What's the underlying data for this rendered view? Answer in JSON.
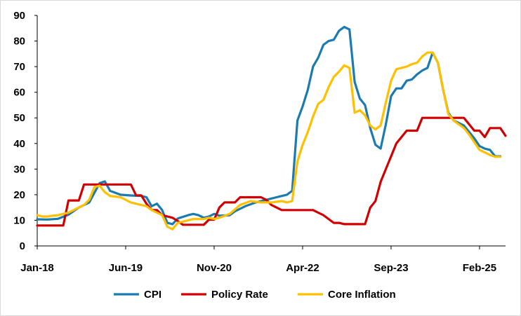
{
  "chart_data": {
    "type": "line",
    "title": "",
    "xlabel": "",
    "ylabel": "",
    "ylim": [
      0,
      90
    ],
    "yticks": [
      0,
      10,
      20,
      30,
      40,
      50,
      60,
      70,
      80,
      90
    ],
    "x_tick_labels": [
      "Jan-18",
      "Jun-19",
      "Nov-20",
      "Apr-22",
      "Sep-23",
      "Feb-25"
    ],
    "x_start": "Jan-18",
    "x_end": "Jun-25",
    "grid": false,
    "legend_position": "bottom",
    "series": [
      {
        "name": "CPI",
        "color": "#1b7bb0",
        "points": [
          [
            "Jan-18",
            10.4
          ],
          [
            "Mar-18",
            10.3
          ],
          [
            "May-18",
            10.6
          ],
          [
            "Jul-18",
            12.2
          ],
          [
            "Sep-18",
            15.0
          ],
          [
            "Nov-18",
            17.0
          ],
          [
            "Jan-19",
            24.5
          ],
          [
            "Feb-19",
            25.2
          ],
          [
            "Mar-19",
            21.5
          ],
          [
            "May-19",
            20.0
          ],
          [
            "Jul-19",
            19.7
          ],
          [
            "Sep-19",
            19.5
          ],
          [
            "Oct-19",
            19.0
          ],
          [
            "Nov-19",
            15.5
          ],
          [
            "Dec-19",
            16.5
          ],
          [
            "Jan-20",
            14.0
          ],
          [
            "Feb-20",
            9.0
          ],
          [
            "Mar-20",
            8.5
          ],
          [
            "Apr-20",
            10.7
          ],
          [
            "Jun-20",
            12.0
          ],
          [
            "Jul-20",
            12.5
          ],
          [
            "Aug-20",
            12.0
          ],
          [
            "Sep-20",
            11.0
          ],
          [
            "Oct-20",
            11.5
          ],
          [
            "Nov-20",
            12.5
          ],
          [
            "Dec-20",
            11.8
          ],
          [
            "Feb-21",
            12.0
          ],
          [
            "Mar-21",
            13.5
          ],
          [
            "May-21",
            15.5
          ],
          [
            "Jul-21",
            17.0
          ],
          [
            "Sep-21",
            18.0
          ],
          [
            "Nov-21",
            19.0
          ],
          [
            "Dec-21",
            19.5
          ],
          [
            "Jan-22",
            20.0
          ],
          [
            "Feb-22",
            21.5
          ],
          [
            "Mar-22",
            49.0
          ],
          [
            "Apr-22",
            54.5
          ],
          [
            "May-22",
            61.0
          ],
          [
            "Jun-22",
            70.0
          ],
          [
            "Jul-22",
            73.5
          ],
          [
            "Aug-22",
            78.5
          ],
          [
            "Sep-22",
            80.0
          ],
          [
            "Oct-22",
            80.5
          ],
          [
            "Nov-22",
            84.0
          ],
          [
            "Dec-22",
            85.5
          ],
          [
            "Jan-23",
            84.5
          ],
          [
            "Feb-23",
            64.0
          ],
          [
            "Mar-23",
            57.5
          ],
          [
            "Apr-23",
            55.0
          ],
          [
            "May-23",
            46.0
          ],
          [
            "Jun-23",
            39.5
          ],
          [
            "Jul-23",
            38.0
          ],
          [
            "Aug-23",
            47.5
          ],
          [
            "Sep-23",
            58.5
          ],
          [
            "Oct-23",
            61.5
          ],
          [
            "Nov-23",
            61.5
          ],
          [
            "Dec-23",
            64.5
          ],
          [
            "Jan-24",
            65.0
          ],
          [
            "Feb-24",
            67.0
          ],
          [
            "Mar-24",
            68.5
          ],
          [
            "Apr-24",
            69.5
          ],
          [
            "May-24",
            75.5
          ],
          [
            "Jun-24",
            71.5
          ],
          [
            "Jul-24",
            61.0
          ],
          [
            "Aug-24",
            52.0
          ],
          [
            "Sep-24",
            49.0
          ],
          [
            "Oct-24",
            48.0
          ],
          [
            "Nov-24",
            47.0
          ],
          [
            "Dec-24",
            44.5
          ],
          [
            "Jan-25",
            42.0
          ],
          [
            "Feb-25",
            39.0
          ],
          [
            "Mar-25",
            38.0
          ],
          [
            "Apr-25",
            37.5
          ],
          [
            "May-25",
            35.0
          ],
          [
            "Jun-25",
            35.0
          ]
        ]
      },
      {
        "name": "Policy Rate",
        "color": "#d10000",
        "points": [
          [
            "Jan-18",
            8.0
          ],
          [
            "Jun-18",
            8.0
          ],
          [
            "Jul-18",
            17.75
          ],
          [
            "Sep-18",
            17.75
          ],
          [
            "Oct-18",
            24.0
          ],
          [
            "Jul-19",
            24.0
          ],
          [
            "Aug-19",
            19.75
          ],
          [
            "Sep-19",
            19.75
          ],
          [
            "Oct-19",
            16.5
          ],
          [
            "Nov-19",
            14.0
          ],
          [
            "Dec-19",
            14.0
          ],
          [
            "Jan-20",
            12.0
          ],
          [
            "Mar-20",
            11.0
          ],
          [
            "Apr-20",
            9.75
          ],
          [
            "May-20",
            8.25
          ],
          [
            "Aug-20",
            8.25
          ],
          [
            "Sep-20",
            8.25
          ],
          [
            "Oct-20",
            10.25
          ],
          [
            "Nov-20",
            10.25
          ],
          [
            "Dec-20",
            15.0
          ],
          [
            "Jan-21",
            17.0
          ],
          [
            "Mar-21",
            17.0
          ],
          [
            "Apr-21",
            19.0
          ],
          [
            "Aug-21",
            19.0
          ],
          [
            "Sep-21",
            18.0
          ],
          [
            "Oct-21",
            16.0
          ],
          [
            "Nov-21",
            15.0
          ],
          [
            "Dec-21",
            14.0
          ],
          [
            "Jun-22",
            14.0
          ],
          [
            "Jul-22",
            13.0
          ],
          [
            "Aug-22",
            12.0
          ],
          [
            "Sep-22",
            10.5
          ],
          [
            "Oct-22",
            9.0
          ],
          [
            "Nov-22",
            9.0
          ],
          [
            "Dec-22",
            8.5
          ],
          [
            "Jan-23",
            8.5
          ],
          [
            "Feb-23",
            8.5
          ],
          [
            "Mar-23",
            8.5
          ],
          [
            "Apr-23",
            8.5
          ],
          [
            "May-23",
            15.0
          ],
          [
            "Jun-23",
            17.5
          ],
          [
            "Jul-23",
            25.0
          ],
          [
            "Aug-23",
            30.0
          ],
          [
            "Sep-23",
            35.0
          ],
          [
            "Oct-23",
            40.0
          ],
          [
            "Nov-23",
            42.5
          ],
          [
            "Dec-23",
            45.0
          ],
          [
            "Jan-24",
            45.0
          ],
          [
            "Feb-24",
            45.0
          ],
          [
            "Mar-24",
            50.0
          ],
          [
            "Nov-24",
            50.0
          ],
          [
            "Dec-24",
            47.5
          ],
          [
            "Jan-25",
            45.0
          ],
          [
            "Feb-25",
            45.0
          ],
          [
            "Mar-25",
            42.5
          ],
          [
            "Apr-25",
            46.0
          ],
          [
            "May-25",
            46.0
          ],
          [
            "Jun-25",
            46.0
          ],
          [
            "Jul-25",
            43.0
          ]
        ]
      },
      {
        "name": "Core Inflation",
        "color": "#ffc000",
        "points": [
          [
            "Jan-18",
            12.0
          ],
          [
            "Feb-18",
            11.5
          ],
          [
            "Mar-18",
            11.5
          ],
          [
            "Apr-18",
            11.8
          ],
          [
            "May-18",
            12.0
          ],
          [
            "Jul-18",
            13.0
          ],
          [
            "Sep-18",
            15.0
          ],
          [
            "Oct-18",
            16.0
          ],
          [
            "Nov-18",
            18.0
          ],
          [
            "Dec-18",
            23.0
          ],
          [
            "Jan-19",
            23.5
          ],
          [
            "Feb-19",
            21.0
          ],
          [
            "Mar-19",
            19.5
          ],
          [
            "May-19",
            19.0
          ],
          [
            "Jul-19",
            17.0
          ],
          [
            "Sep-19",
            16.0
          ],
          [
            "Oct-19",
            15.5
          ],
          [
            "Nov-19",
            14.0
          ],
          [
            "Dec-19",
            13.0
          ],
          [
            "Jan-20",
            12.0
          ],
          [
            "Feb-20",
            7.5
          ],
          [
            "Mar-20",
            6.5
          ],
          [
            "Apr-20",
            9.0
          ],
          [
            "May-20",
            9.5
          ],
          [
            "Jul-20",
            10.5
          ],
          [
            "Sep-20",
            10.5
          ],
          [
            "Oct-20",
            11.0
          ],
          [
            "Nov-20",
            10.5
          ],
          [
            "Dec-20",
            11.0
          ],
          [
            "Feb-21",
            12.5
          ],
          [
            "Apr-21",
            16.0
          ],
          [
            "Jun-21",
            17.5
          ],
          [
            "Aug-21",
            17.0
          ],
          [
            "Oct-21",
            17.0
          ],
          [
            "Dec-21",
            17.5
          ],
          [
            "Jan-22",
            17.0
          ],
          [
            "Feb-22",
            17.5
          ],
          [
            "Mar-22",
            33.0
          ],
          [
            "Apr-22",
            39.5
          ],
          [
            "May-22",
            44.5
          ],
          [
            "Jun-22",
            50.5
          ],
          [
            "Jul-22",
            55.5
          ],
          [
            "Aug-22",
            57.0
          ],
          [
            "Sep-22",
            62.0
          ],
          [
            "Oct-22",
            66.0
          ],
          [
            "Nov-22",
            68.0
          ],
          [
            "Dec-22",
            70.5
          ],
          [
            "Jan-23",
            69.5
          ],
          [
            "Feb-23",
            52.0
          ],
          [
            "Mar-23",
            53.0
          ],
          [
            "Apr-23",
            51.0
          ],
          [
            "May-23",
            47.0
          ],
          [
            "Jun-23",
            45.5
          ],
          [
            "Jul-23",
            47.0
          ],
          [
            "Aug-23",
            56.0
          ],
          [
            "Sep-23",
            64.5
          ],
          [
            "Oct-23",
            69.0
          ],
          [
            "Nov-23",
            69.5
          ],
          [
            "Dec-23",
            70.0
          ],
          [
            "Jan-24",
            71.0
          ],
          [
            "Feb-24",
            71.5
          ],
          [
            "Mar-24",
            74.0
          ],
          [
            "Apr-24",
            75.5
          ],
          [
            "May-24",
            75.5
          ],
          [
            "Jun-24",
            71.5
          ],
          [
            "Jul-24",
            61.0
          ],
          [
            "Aug-24",
            51.5
          ],
          [
            "Sep-24",
            49.0
          ],
          [
            "Oct-24",
            47.5
          ],
          [
            "Nov-24",
            46.0
          ],
          [
            "Dec-24",
            43.5
          ],
          [
            "Jan-25",
            40.5
          ],
          [
            "Feb-25",
            37.5
          ],
          [
            "Mar-25",
            36.5
          ],
          [
            "Apr-25",
            35.5
          ],
          [
            "May-25",
            34.8
          ],
          [
            "Jun-25",
            34.8
          ]
        ]
      }
    ]
  }
}
